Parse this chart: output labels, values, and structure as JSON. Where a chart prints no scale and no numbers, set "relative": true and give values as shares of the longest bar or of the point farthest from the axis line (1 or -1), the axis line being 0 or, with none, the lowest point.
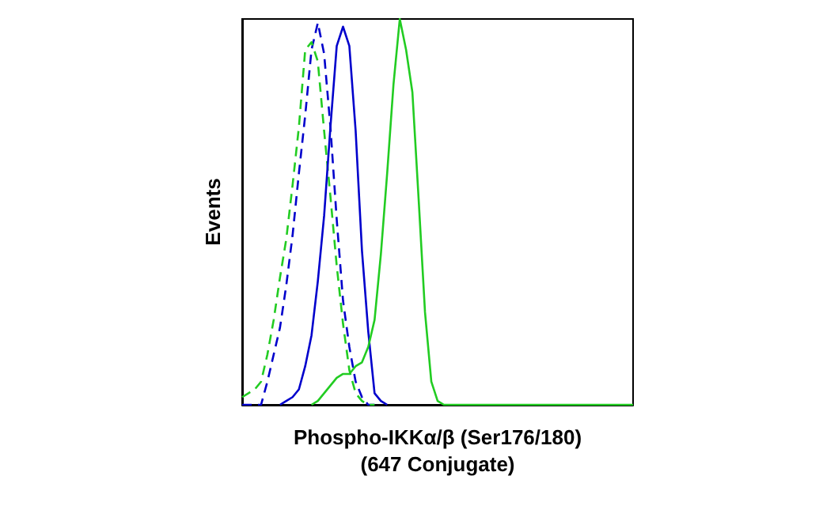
{
  "chart_data": {
    "type": "line",
    "xlabel": "Phospho-IKKα/β (Ser176/180)\n(647 Conjugate)",
    "ylabel": "Events",
    "relative": true,
    "tick_labels": false,
    "grid": false,
    "categories": [
      null,
      null,
      null,
      null,
      null,
      null,
      null,
      null,
      null,
      null,
      null,
      null,
      null,
      null,
      null,
      null,
      null,
      null,
      null,
      null,
      null,
      null,
      null,
      null,
      null,
      null,
      null,
      null,
      null,
      null,
      null,
      null,
      null,
      null,
      null,
      null,
      null,
      null,
      null,
      null,
      null,
      null,
      null,
      null,
      null,
      null,
      null,
      null,
      null,
      null,
      null,
      null,
      null,
      null,
      null,
      null,
      null,
      null,
      null,
      null,
      null,
      null,
      null
    ],
    "series": [
      {
        "color": "#0000cc",
        "line_style": "dashed",
        "values": [
          0,
          0,
          0,
          0,
          0.06,
          0.13,
          0.2,
          0.31,
          0.44,
          0.6,
          0.75,
          0.92,
          0.99,
          0.91,
          0.72,
          0.48,
          0.27,
          0.15,
          0.06,
          0.02,
          0,
          0,
          null,
          null,
          null,
          null,
          null,
          null,
          null,
          null,
          null,
          null,
          null,
          null,
          null,
          null,
          null,
          null,
          null,
          null,
          null,
          null,
          null,
          null,
          null,
          null,
          null,
          null,
          null,
          null,
          null,
          null,
          null,
          null,
          null,
          null,
          null,
          null,
          null,
          null,
          null,
          null,
          null
        ]
      },
      {
        "color": "#22cc22",
        "line_style": "dashed",
        "values": [
          0.02,
          0.03,
          0.04,
          0.06,
          0.13,
          0.22,
          0.33,
          0.43,
          0.57,
          0.72,
          0.92,
          0.94,
          0.89,
          0.71,
          0.54,
          0.36,
          0.21,
          0.09,
          0.03,
          0.01,
          0,
          0,
          null,
          null,
          null,
          null,
          null,
          null,
          null,
          null,
          null,
          null,
          null,
          null,
          null,
          null,
          null,
          null,
          null,
          null,
          null,
          null,
          null,
          null,
          null,
          null,
          null,
          null,
          null,
          null,
          null,
          null,
          null,
          null,
          null,
          null,
          null,
          null,
          null,
          null,
          null,
          null,
          null
        ]
      },
      {
        "color": "#0000cc",
        "line_style": "solid",
        "values": [
          null,
          null,
          null,
          null,
          null,
          null,
          0,
          0.01,
          0.02,
          0.04,
          0.1,
          0.18,
          0.32,
          0.49,
          0.72,
          0.93,
          0.98,
          0.93,
          0.71,
          0.4,
          0.19,
          0.03,
          0.01,
          0,
          null,
          null,
          null,
          null,
          null,
          null,
          null,
          null,
          null,
          null,
          null,
          null,
          null,
          null,
          null,
          null,
          null,
          null,
          null,
          null,
          null,
          null,
          null,
          null,
          null,
          null,
          null,
          null,
          null,
          null,
          null,
          null,
          null,
          null,
          null,
          null,
          null,
          null,
          null
        ]
      },
      {
        "color": "#22cc22",
        "line_style": "solid",
        "values": [
          null,
          null,
          null,
          null,
          null,
          null,
          null,
          null,
          null,
          null,
          null,
          0,
          0.01,
          0.03,
          0.05,
          0.07,
          0.08,
          0.08,
          0.1,
          0.11,
          0.15,
          0.22,
          0.39,
          0.6,
          0.83,
          1,
          0.92,
          0.81,
          0.53,
          0.24,
          0.06,
          0.01,
          0,
          0,
          0,
          0,
          0,
          0,
          0,
          0,
          0,
          0,
          0,
          0,
          0,
          0,
          0,
          0,
          0,
          0,
          0,
          0,
          0,
          0,
          0,
          0,
          0,
          0,
          0,
          0,
          0,
          0,
          0
        ]
      }
    ]
  }
}
